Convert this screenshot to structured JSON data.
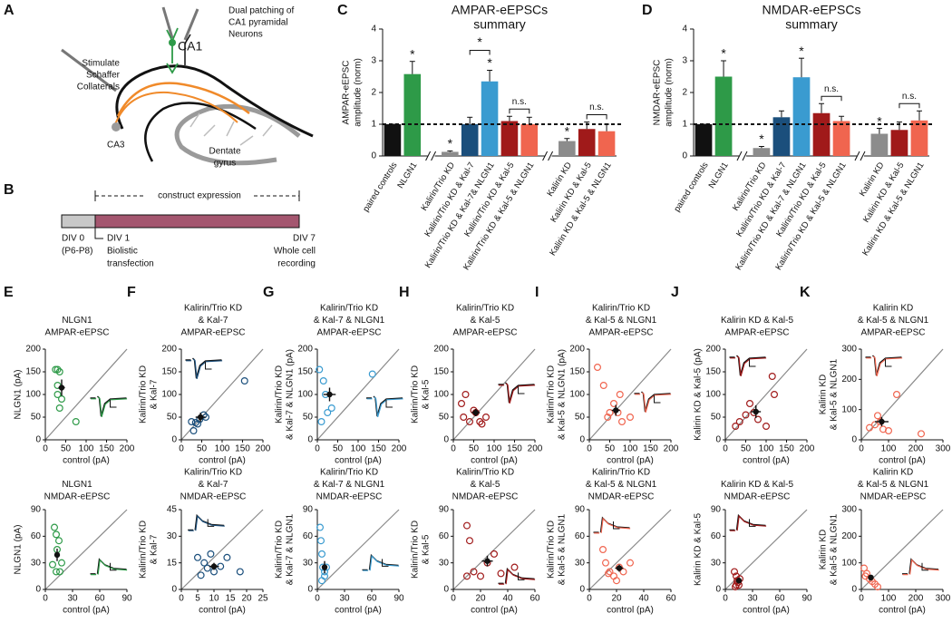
{
  "panel_labels": [
    "A",
    "B",
    "C",
    "D",
    "E",
    "F",
    "G",
    "H",
    "I",
    "J",
    "K"
  ],
  "diagram_a": {
    "dual_patching": [
      "Dual patching of",
      "CA1 pyramidal",
      "Neurons"
    ],
    "ca1": "CA1",
    "stimulate": [
      "Stimulate",
      "Schaffer",
      "Collaterals"
    ],
    "ca3": "CA3",
    "dentate": [
      "Dentate",
      "gyrus"
    ]
  },
  "timeline_b": {
    "header": "construct expression",
    "div0": [
      "DIV 0",
      "(P6-P8)"
    ],
    "div1": [
      "DIV 1",
      "Biolistic",
      "transfection"
    ],
    "div7": [
      "DIV 7",
      "Whole cell",
      "recording"
    ]
  },
  "chart_data": [
    {
      "type": "bar",
      "title": "AMPAR-eEPSCs",
      "subtitle": "summary",
      "ylabel": [
        "AMPAR-eEPSC",
        "amplitude (norm)"
      ],
      "categories": [
        "paired controls",
        "NLGN1",
        "Kalirin/Trio KD",
        "Kalirin/Trio KD & Kal-7",
        "Kalirin/Trio KD & Kal-7& NLGN1",
        "Kalirin/Trio KD & Kal-5",
        "Kalirin/Trio KD & Kal-5 & NLGN1",
        "Kalirin KD",
        "Kalirin KD & Kal-5",
        "Kalirin KD & Kal-5 & NLGN1"
      ],
      "values": [
        1,
        2.58,
        0.13,
        1.0,
        2.35,
        1.1,
        1.0,
        0.47,
        0.85,
        0.78
      ],
      "errors": [
        0,
        0.4,
        0.03,
        0.22,
        0.35,
        0.15,
        0.22,
        0.08,
        0.22,
        0.22
      ],
      "colors": [
        "#111111",
        "#2e9a48",
        "#8c8c8c",
        "#1b4f7c",
        "#3a9bd0",
        "#a01a1a",
        "#f0654f",
        "#8c8c8c",
        "#a01a1a",
        "#f0654f"
      ],
      "ylim": [
        0,
        4
      ],
      "yticks": [
        0,
        1,
        2,
        3,
        4
      ],
      "reference_line": 1,
      "breaks_after": [
        1,
        6
      ],
      "annotations": [
        {
          "text": "*",
          "bars": [
            1
          ]
        },
        {
          "text": "*",
          "bars": [
            2
          ]
        },
        {
          "text": "*",
          "bars": [
            4
          ]
        },
        {
          "text": "*",
          "bars": [
            3,
            4
          ]
        },
        {
          "text": "n.s.",
          "bars": [
            5,
            6
          ]
        },
        {
          "text": "*",
          "bars": [
            7
          ]
        },
        {
          "text": "n.s.",
          "bars": [
            8,
            9
          ]
        }
      ]
    },
    {
      "type": "bar",
      "title": "NMDAR-eEPSCs",
      "subtitle": "summary",
      "ylabel": [
        "NMDAR-eEPSC",
        "amplitude (norm)"
      ],
      "categories": [
        "paired controls",
        "NLGN1",
        "Kalirin/Trio KD",
        "Kalirin/Trio KD & Kal-7",
        "Kalirin/Trio KD & Kal-7 & NLGN1",
        "Kalirin/Trio KD & Kal-5",
        "Kalirin/Trio KD & Kal-5 & NLGN1",
        "Kalirin KD",
        "Kalirin KD & Kal-5",
        "Kalirin KD & Kal-5 & NLGN1"
      ],
      "values": [
        1,
        2.5,
        0.25,
        1.22,
        2.48,
        1.35,
        1.1,
        0.7,
        0.82,
        1.12
      ],
      "errors": [
        0,
        0.5,
        0.05,
        0.2,
        0.6,
        0.3,
        0.15,
        0.17,
        0.25,
        0.3
      ],
      "colors": [
        "#111111",
        "#2e9a48",
        "#8c8c8c",
        "#1b4f7c",
        "#3a9bd0",
        "#a01a1a",
        "#f0654f",
        "#8c8c8c",
        "#a01a1a",
        "#f0654f"
      ],
      "ylim": [
        0,
        4
      ],
      "yticks": [
        0,
        1,
        2,
        3,
        4
      ],
      "reference_line": 1,
      "breaks_after": [
        1,
        6
      ],
      "annotations": [
        {
          "text": "*",
          "bars": [
            1
          ]
        },
        {
          "text": "*",
          "bars": [
            2
          ]
        },
        {
          "text": "*",
          "bars": [
            4
          ]
        },
        {
          "text": "n.s.",
          "bars": [
            5,
            6
          ]
        },
        {
          "text": "*",
          "bars": [
            7
          ]
        },
        {
          "text": "n.s.",
          "bars": [
            8,
            9
          ]
        }
      ]
    },
    {
      "type": "scatter",
      "title": [
        "NLGN1"
      ],
      "measure": "AMPAR-eEPSC",
      "ylabel": [
        "NLGN1 (pA)"
      ],
      "xlabel": "control (pA)",
      "color": "#2e9a48",
      "xlim": [
        0,
        200
      ],
      "ylim": [
        0,
        200
      ],
      "xticks": [
        0,
        50,
        100,
        150,
        200
      ],
      "yticks": [
        0,
        50,
        100,
        150,
        200
      ],
      "x": [
        25,
        30,
        35,
        30,
        40,
        75,
        35,
        30
      ],
      "y": [
        155,
        155,
        150,
        120,
        90,
        40,
        70,
        100
      ],
      "mean_x": 40,
      "mean_y": 115,
      "mean_xerr": 8,
      "mean_yerr": 18
    },
    {
      "type": "scatter",
      "title": [
        "NLGN1"
      ],
      "measure": "NMDAR-eEPSC",
      "ylabel": [
        "NLGN1 (pA)"
      ],
      "xlabel": "control (pA)",
      "color": "#2e9a48",
      "xlim": [
        0,
        90
      ],
      "ylim": [
        0,
        90
      ],
      "xticks": [
        0,
        30,
        60,
        90
      ],
      "yticks": [
        0,
        30,
        60,
        90
      ],
      "x": [
        10,
        12,
        15,
        13,
        18,
        16,
        8,
        12
      ],
      "y": [
        70,
        62,
        55,
        45,
        30,
        20,
        28,
        20
      ],
      "mean_x": 13,
      "mean_y": 39,
      "mean_xerr": 2,
      "mean_yerr": 7
    },
    {
      "type": "scatter",
      "title": [
        "Kalirin/Trio KD",
        "& Kal-7"
      ],
      "measure": "AMPAR-eEPSC",
      "ylabel": [
        "Kalirin/Trio KD",
        "& Kal-7"
      ],
      "xlabel": "control (pA)",
      "color": "#1b4f7c",
      "xlim": [
        0,
        200
      ],
      "ylim": [
        0,
        200
      ],
      "xticks": [
        0,
        50,
        100,
        150,
        200
      ],
      "yticks": [
        0,
        50,
        100,
        150,
        200
      ],
      "x": [
        25,
        35,
        45,
        55,
        40,
        60,
        155,
        30
      ],
      "y": [
        40,
        38,
        45,
        55,
        35,
        50,
        130,
        20
      ],
      "mean_x": 47,
      "mean_y": 50,
      "mean_xerr": 12,
      "mean_yerr": 10
    },
    {
      "type": "scatter",
      "title": [
        "Kalirin/Trio KD",
        "& Kal-7"
      ],
      "measure": "NMDAR-eEPSC",
      "ylabel": [
        "Kalirin/Trio KD",
        "& Kal-7"
      ],
      "xlabel": "control (pA)",
      "color": "#1b4f7c",
      "xlim": [
        0,
        25
      ],
      "ylim": [
        0,
        45
      ],
      "xticks": [
        0,
        5,
        10,
        15,
        20,
        25
      ],
      "yticks": [
        0,
        15,
        30,
        45
      ],
      "x": [
        5,
        7,
        8,
        10,
        12,
        14,
        18,
        6,
        9
      ],
      "y": [
        18,
        15,
        12,
        10,
        13,
        18,
        10,
        8,
        20
      ],
      "mean_x": 10,
      "mean_y": 13,
      "mean_xerr": 1.5,
      "mean_yerr": 2
    },
    {
      "type": "scatter",
      "title": [
        "Kalirin/Trio KD",
        "& Kal-7 & NLGN1"
      ],
      "measure": "AMPAR-eEPSC",
      "ylabel": [
        "Kalirin/Trio KD",
        "& Kal-7 & NLGN1 (pA)"
      ],
      "xlabel": "control (pA)",
      "color": "#3a9bd0",
      "xlim": [
        0,
        200
      ],
      "ylim": [
        0,
        200
      ],
      "xticks": [
        0,
        50,
        100,
        150,
        200
      ],
      "yticks": [
        0,
        50,
        100,
        150,
        200
      ],
      "x": [
        5,
        15,
        20,
        25,
        10,
        35,
        135
      ],
      "y": [
        155,
        130,
        100,
        60,
        40,
        70,
        145
      ],
      "mean_x": 30,
      "mean_y": 100,
      "mean_xerr": 15,
      "mean_yerr": 15
    },
    {
      "type": "scatter",
      "title": [
        "Kalirin/Trio KD",
        "& Kal-7 & NLGN1"
      ],
      "measure": "NMDAR-eEPSC",
      "ylabel": [
        "Kalirin/Trio KD",
        "& Kal-7 & NLGN1"
      ],
      "xlabel": "control (pA)",
      "color": "#3a9bd0",
      "xlim": [
        0,
        90
      ],
      "ylim": [
        0,
        90
      ],
      "xticks": [
        0,
        30,
        60,
        90
      ],
      "yticks": [
        0,
        30,
        60,
        90
      ],
      "x": [
        3,
        4,
        5,
        6,
        8,
        10,
        8,
        5
      ],
      "y": [
        70,
        55,
        40,
        25,
        20,
        25,
        15,
        10
      ],
      "mean_x": 8,
      "mean_y": 25,
      "mean_xerr": 2,
      "mean_yerr": 7
    },
    {
      "type": "scatter",
      "title": [
        "Kalirin/Trio KD",
        "& Kal-5"
      ],
      "measure": "AMPAR-eEPSC",
      "ylabel": [
        "Kalirin/Trio KD",
        "& Kal-5"
      ],
      "xlabel": "control (pA)",
      "color": "#a01a1a",
      "xlim": [
        0,
        200
      ],
      "ylim": [
        0,
        200
      ],
      "xticks": [
        0,
        50,
        100,
        150,
        200
      ],
      "yticks": [
        0,
        50,
        100,
        150,
        200
      ],
      "x": [
        20,
        25,
        40,
        55,
        65,
        70,
        80,
        30,
        50
      ],
      "y": [
        80,
        50,
        40,
        60,
        40,
        35,
        50,
        100,
        65
      ],
      "mean_x": 55,
      "mean_y": 60,
      "mean_xerr": 10,
      "mean_yerr": 8
    },
    {
      "type": "scatter",
      "title": [
        "Kalirin/Trio KD",
        "& Kal-5"
      ],
      "measure": "NMDAR-eEPSC",
      "ylabel": [
        "Kalirin/Trio KD",
        "& Kal-5"
      ],
      "xlabel": "control (pA)",
      "color": "#a01a1a",
      "xlim": [
        0,
        60
      ],
      "ylim": [
        0,
        90
      ],
      "xticks": [
        0,
        20,
        40,
        60
      ],
      "yticks": [
        0,
        30,
        60,
        90
      ],
      "x": [
        10,
        12,
        15,
        20,
        25,
        30,
        35,
        10,
        45
      ],
      "y": [
        72,
        55,
        20,
        15,
        30,
        40,
        18,
        15,
        25
      ],
      "mean_x": 25,
      "mean_y": 32,
      "mean_xerr": 4,
      "mean_yerr": 6
    },
    {
      "type": "scatter",
      "title": [
        "Kalirin/Trio KD",
        "& Kal-5 & NLGN1"
      ],
      "measure": "AMPAR-eEPSC",
      "ylabel": [
        "Kalirin/Trio KD",
        "& Kal-5 & NLGN1 (pA)"
      ],
      "xlabel": "control (pA)",
      "color": "#f0654f",
      "xlim": [
        0,
        200
      ],
      "ylim": [
        0,
        200
      ],
      "xticks": [
        0,
        50,
        100,
        150,
        200
      ],
      "yticks": [
        0,
        50,
        100,
        150,
        200
      ],
      "x": [
        20,
        35,
        45,
        60,
        70,
        80,
        100,
        50,
        75
      ],
      "y": [
        160,
        120,
        50,
        80,
        60,
        40,
        50,
        60,
        100
      ],
      "mean_x": 65,
      "mean_y": 65,
      "mean_xerr": 10,
      "mean_yerr": 12
    },
    {
      "type": "scatter",
      "title": [
        "Kalirin/Trio KD",
        "& Kal-5 & NLGN1"
      ],
      "measure": "NMDAR-eEPSC",
      "ylabel": [
        "Kalirin/Trio KD",
        "& Kal-5 & NLGN1"
      ],
      "xlabel": "control (pA)",
      "color": "#f0654f",
      "xlim": [
        0,
        60
      ],
      "ylim": [
        0,
        90
      ],
      "xticks": [
        0,
        20,
        40,
        60
      ],
      "yticks": [
        0,
        30,
        60,
        90
      ],
      "x": [
        10,
        12,
        15,
        18,
        20,
        22,
        25,
        30,
        14
      ],
      "y": [
        45,
        30,
        20,
        15,
        10,
        25,
        20,
        30,
        18
      ],
      "mean_x": 22,
      "mean_y": 24,
      "mean_xerr": 3,
      "mean_yerr": 4
    },
    {
      "type": "scatter",
      "title": [
        "Kalirin KD & Kal-5"
      ],
      "measure": "AMPAR-eEPSC",
      "ylabel": [
        "Kalirin KD & Kal-5 (pA)"
      ],
      "xlabel": "control (pA)",
      "color": "#a01a1a",
      "xlim": [
        0,
        200
      ],
      "ylim": [
        0,
        200
      ],
      "xticks": [
        0,
        50,
        100,
        150,
        200
      ],
      "yticks": [
        0,
        50,
        100,
        150,
        200
      ],
      "x": [
        25,
        35,
        50,
        60,
        70,
        80,
        100,
        115,
        120
      ],
      "y": [
        30,
        40,
        55,
        80,
        60,
        45,
        30,
        140,
        100
      ],
      "mean_x": 75,
      "mean_y": 62,
      "mean_xerr": 12,
      "mean_yerr": 14
    },
    {
      "type": "scatter",
      "title": [
        "Kalirin KD & Kal-5"
      ],
      "measure": "NMDAR-eEPSC",
      "ylabel": [
        "Kalirin KD & Kal-5"
      ],
      "xlabel": "control (pA)",
      "color": "#a01a1a",
      "xlim": [
        0,
        90
      ],
      "ylim": [
        0,
        90
      ],
      "xticks": [
        0,
        30,
        60,
        90
      ],
      "yticks": [
        0,
        30,
        60,
        90
      ],
      "x": [
        10,
        12,
        13,
        14,
        15,
        11,
        16,
        12
      ],
      "y": [
        20,
        15,
        10,
        8,
        5,
        3,
        12,
        5
      ],
      "mean_x": 15,
      "mean_y": 10,
      "mean_xerr": 2,
      "mean_yerr": 3
    },
    {
      "type": "scatter",
      "title": [
        "Kalirin KD",
        "& Kal-5 & NLGN1"
      ],
      "measure": "AMPAR-eEPSC",
      "ylabel": [
        "Kalirin KD",
        "& Kal-5 & NLGN1"
      ],
      "xlabel": "control (pA)",
      "color": "#f0654f",
      "xlim": [
        0,
        300
      ],
      "ylim": [
        0,
        300
      ],
      "xticks": [
        0,
        100,
        200,
        300
      ],
      "yticks": [
        0,
        100,
        200,
        300
      ],
      "x": [
        30,
        50,
        60,
        80,
        100,
        130,
        220,
        70
      ],
      "y": [
        40,
        50,
        80,
        35,
        30,
        150,
        20,
        60
      ],
      "mean_x": 75,
      "mean_y": 60,
      "mean_xerr": 25,
      "mean_yerr": 15
    },
    {
      "type": "scatter",
      "title": [
        "Kalirin KD",
        "& Kal-5 & NLGN1"
      ],
      "measure": "NMDAR-eEPSC",
      "ylabel": [
        "Kalirin KD",
        "& Kal-5 & NLGN1"
      ],
      "xlabel": "control (pA)",
      "color": "#f0654f",
      "xlim": [
        0,
        300
      ],
      "ylim": [
        0,
        300
      ],
      "xticks": [
        0,
        100,
        200,
        300
      ],
      "yticks": [
        0,
        100,
        200,
        300
      ],
      "x": [
        10,
        20,
        30,
        40,
        50,
        60,
        15
      ],
      "y": [
        80,
        60,
        40,
        30,
        20,
        10,
        50
      ],
      "mean_x": 35,
      "mean_y": 45,
      "mean_xerr": 8,
      "mean_yerr": 8
    }
  ]
}
